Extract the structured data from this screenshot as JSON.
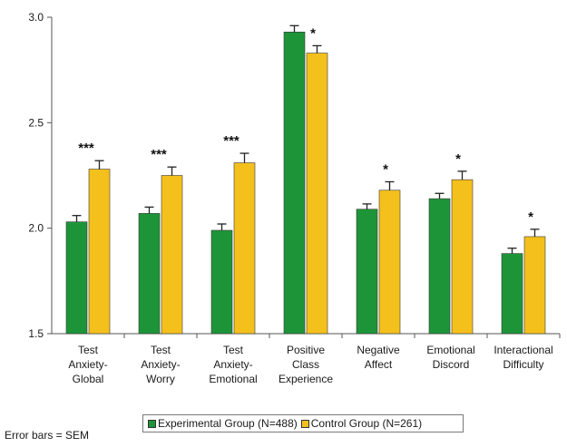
{
  "colors": {
    "experimental": "#1e9438",
    "control": "#f4c01c",
    "axis": "#555555"
  },
  "chart_data": {
    "type": "bar",
    "ylim": [
      1.5,
      3.0
    ],
    "yticks": [
      "1.5",
      "2.0",
      "2.5",
      "3.0"
    ],
    "xlabel": "",
    "ylabel": "",
    "categories": [
      [
        "Test",
        "Anxiety-",
        "Global"
      ],
      [
        "Test",
        "Anxiety-",
        "Worry"
      ],
      [
        "Test",
        "Anxiety-",
        "Emotional"
      ],
      [
        "Positive",
        "Class",
        "Experience"
      ],
      [
        "Negative",
        "Affect"
      ],
      [
        "Emotional",
        "Discord"
      ],
      [
        "Interactional",
        "Difficulty"
      ]
    ],
    "series": [
      {
        "name": "Experimental Group (N=488)",
        "values": [
          2.03,
          2.07,
          1.99,
          2.93,
          2.09,
          2.14,
          1.88
        ],
        "sem": [
          0.03,
          0.03,
          0.03,
          0.03,
          0.025,
          0.025,
          0.025
        ]
      },
      {
        "name": "Control Group (N=261)",
        "values": [
          2.28,
          2.25,
          2.31,
          2.83,
          2.18,
          2.23,
          1.96
        ],
        "sem": [
          0.04,
          0.04,
          0.045,
          0.035,
          0.04,
          0.04,
          0.035
        ]
      }
    ],
    "significance": [
      "***",
      "***",
      "***",
      "*",
      "*",
      "*",
      "*"
    ],
    "legend_position": "bottom",
    "grid": false,
    "note": "Error bars = SEM"
  }
}
